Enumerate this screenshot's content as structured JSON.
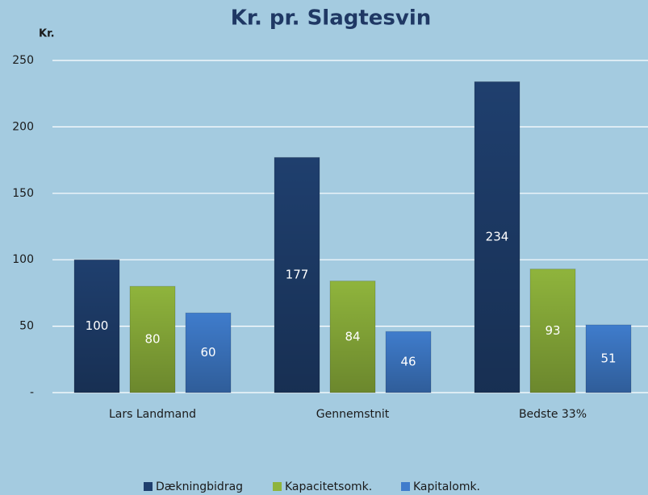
{
  "chart_data": {
    "type": "bar",
    "title": "Kr. pr. Slagtesvin",
    "y_label": "Kr.",
    "categories": [
      "Lars Landmand",
      "Gennemstnit",
      "Bedste 33%"
    ],
    "series": [
      {
        "name": "Dækningbidrag",
        "color": "#1f3f6e",
        "values": [
          100,
          177,
          234
        ]
      },
      {
        "name": "Kapacitetsomk.",
        "color": "#8fb43c",
        "values": [
          80,
          84,
          93
        ]
      },
      {
        "name": "Kapitalomk.",
        "color": "#3f7ccc",
        "values": [
          60,
          46,
          51
        ]
      }
    ],
    "ylim": [
      0,
      250
    ],
    "yticks": [
      {
        "value": 0,
        "label": "-"
      },
      50,
      100,
      150,
      200,
      250
    ],
    "grid": true,
    "legend": "bottom"
  }
}
